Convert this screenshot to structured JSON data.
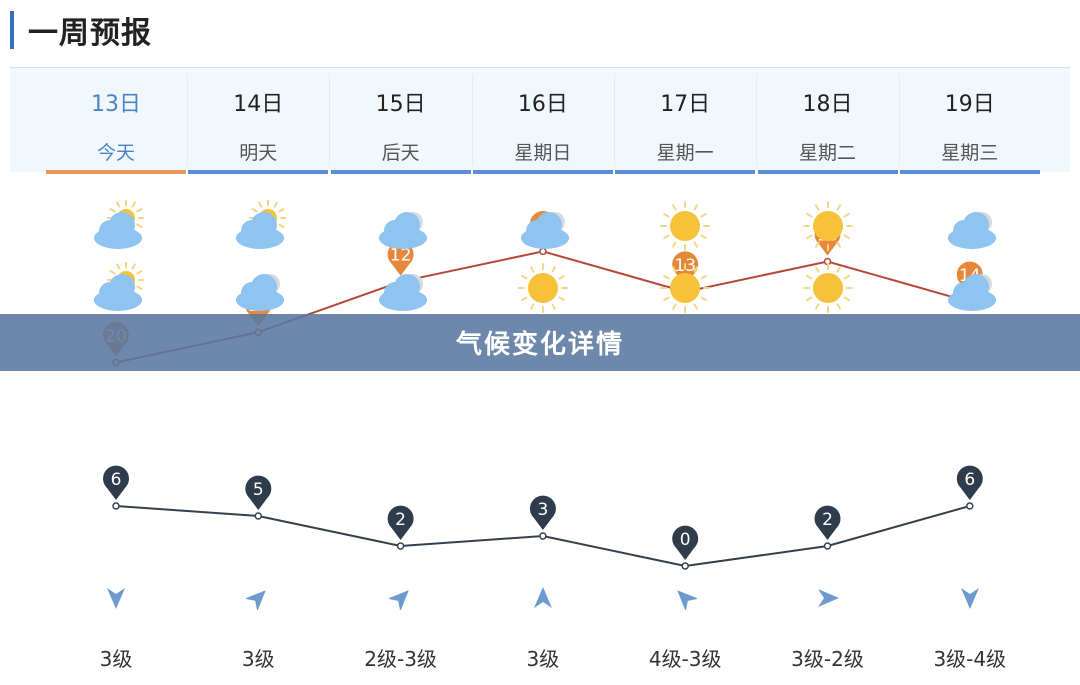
{
  "page": {
    "title": "一周预报"
  },
  "banner": {
    "text": "气候变化详情"
  },
  "days": [
    {
      "date": "13日",
      "name": "今天",
      "today": true,
      "icon_day": "partly-cloudy-icon",
      "icon_night": "partly-cloudy-icon",
      "high": 20,
      "low": 6,
      "wind_dir": "down",
      "wind": "3级"
    },
    {
      "date": "14日",
      "name": "明天",
      "today": false,
      "icon_day": "partly-cloudy-icon",
      "icon_night": "cloudy-icon",
      "high": 17,
      "low": 5,
      "wind_dir": "up-right",
      "wind": "3级"
    },
    {
      "date": "15日",
      "name": "后天",
      "today": false,
      "icon_day": "cloudy-icon",
      "icon_night": "cloudy-icon",
      "high": 12,
      "low": 2,
      "wind_dir": "up-right",
      "wind": "2级-3级"
    },
    {
      "date": "16日",
      "name": "星期日",
      "today": false,
      "icon_day": "cloudy-icon",
      "icon_night": "sunny-icon",
      "high": 9,
      "low": 3,
      "wind_dir": "up",
      "wind": "3级"
    },
    {
      "date": "17日",
      "name": "星期一",
      "today": false,
      "icon_day": "sunny-icon",
      "icon_night": "sunny-icon",
      "high": 13,
      "low": 0,
      "wind_dir": "up-left",
      "wind": "4级-3级"
    },
    {
      "date": "18日",
      "name": "星期二",
      "today": false,
      "icon_day": "sunny-icon",
      "icon_night": "sunny-icon",
      "high": 10,
      "low": 2,
      "wind_dir": "right",
      "wind": "3级-2级"
    },
    {
      "date": "19日",
      "name": "星期三",
      "today": false,
      "icon_day": "cloudy-icon",
      "icon_night": "cloudy-icon",
      "high": 14,
      "low": 6,
      "wind_dir": "down",
      "wind": "3级-4级"
    }
  ],
  "colors": {
    "accent": "#3a6fb5",
    "high_line": "#b5473a",
    "high_pin": "#e5883a",
    "low_line": "#34404f",
    "low_pin": "#2f3c4c",
    "wind_arrow": "#6d9bd0",
    "today_tab": "#e49a5a",
    "tab": "#5b8ed0"
  }
}
